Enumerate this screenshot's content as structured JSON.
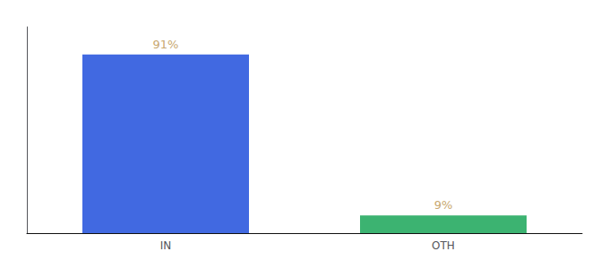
{
  "chart_data": {
    "type": "bar",
    "categories": [
      "IN",
      "OTH"
    ],
    "values": [
      91,
      9
    ],
    "value_labels": [
      "91%",
      "9%"
    ],
    "colors": [
      "#4169E1",
      "#3CB371"
    ],
    "ylim": [
      0,
      105
    ],
    "data_labels": true,
    "tick_labels": "x",
    "grid": false
  }
}
